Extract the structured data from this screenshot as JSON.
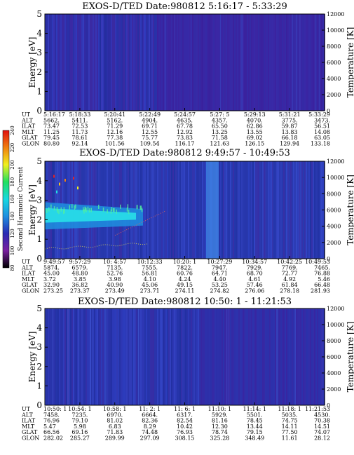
{
  "chart_data": [
    {
      "type": "heatmap",
      "title": "EXOS-D/TED   Date:980812  5:16:17 - 5:33:29",
      "ylabel": "Energy [eV]",
      "y2label": "Temperature [K]",
      "ylim": [
        0,
        5
      ],
      "y2lim": [
        0,
        12000
      ],
      "yticks": [
        "0",
        "1",
        "2",
        "3",
        "4",
        "5"
      ],
      "y2ticks": [
        "0",
        "2000",
        "4000",
        "6000",
        "8000",
        "10000",
        "12000"
      ],
      "background_color": "#3a2aa8",
      "ephemeris": {
        "labels": [
          "UT",
          "ALT",
          "ILAT",
          "MLT",
          "GLAT",
          "GLON"
        ],
        "columns": [
          [
            "5:16:17",
            "5662.",
            "73.47",
            "11.25",
            "79.45",
            "80.80"
          ],
          [
            "5:18:33",
            "5411.",
            "72.53",
            "11.73",
            "78.61",
            "92.14"
          ],
          [
            "5:20:41",
            "5162.",
            "71.29",
            "12.16",
            "77.38",
            "101.56"
          ],
          [
            "5:22:49",
            "4904.",
            "69.71",
            "12.55",
            "75.77",
            "109.54"
          ],
          [
            "5:24:57",
            "4635.",
            "67.78",
            "12.92",
            "73.83",
            "116.17"
          ],
          [
            "5:27: 5",
            "4357.",
            "65.50",
            "13.25",
            "71.58",
            "121.63"
          ],
          [
            "5:29:13",
            "4070.",
            "62.86",
            "13.55",
            "69.02",
            "126.15"
          ],
          [
            "5:31:21",
            "3775.",
            "59.87",
            "13.83",
            "66.18",
            "129.94"
          ],
          [
            "5:33:29",
            "3473.",
            "56.51",
            "14.08",
            "63.05",
            "133.18"
          ]
        ]
      }
    },
    {
      "type": "heatmap",
      "title": "EXOS-D/TED   Date:980812  9:49:57 - 10:49:53",
      "ylabel": "Energy [eV]",
      "y2label": "Temperature [K]",
      "ylim": [
        0,
        5
      ],
      "y2lim": [
        0,
        12000
      ],
      "yticks": [
        "0",
        "1",
        "2",
        "3",
        "4",
        "5"
      ],
      "y2ticks": [
        "0",
        "2000",
        "4000",
        "6000",
        "8000",
        "10000",
        "12000"
      ],
      "background_color": "#2e3cb4",
      "ephemeris": {
        "labels": [
          "UT",
          "ALT",
          "ILAT",
          "MLT",
          "GLAT",
          "GLON"
        ],
        "columns": [
          [
            "9:49:57",
            "5874.",
            "45.00",
            "3.72",
            "32.90",
            "273.25"
          ],
          [
            "9:57:29",
            "6579.",
            "48.80",
            "3.85",
            "36.82",
            "273.37"
          ],
          [
            "10: 4:57",
            "7135.",
            "52.76",
            "3.98",
            "40.90",
            "273.49"
          ],
          [
            "10:12:33",
            "7555.",
            "56.81",
            "4.10",
            "45.06",
            "273.71"
          ],
          [
            "10:20: 1",
            "7822.",
            "60.76",
            "4.24",
            "49.15",
            "274.11"
          ],
          [
            "10:27:29",
            "7947.",
            "64.71",
            "4.40",
            "53.25",
            "274.82"
          ],
          [
            "10:34:57",
            "7929.",
            "68.70",
            "4.61",
            "57.46",
            "276.06"
          ],
          [
            "10:42:25",
            "7769.",
            "72.77",
            "4.92",
            "61.84",
            "278.18"
          ],
          [
            "10:49:53",
            "7465.",
            "76.88",
            "5.46",
            "66.48",
            "281.93"
          ]
        ]
      }
    },
    {
      "type": "heatmap",
      "title": "EXOS-D/TED   Date:980812  10:50: 1 - 11:21:53",
      "ylabel": "Energy [eV]",
      "y2label": "Temperature [K]",
      "ylim": [
        0,
        5
      ],
      "y2lim": [
        0,
        12000
      ],
      "yticks": [
        "0",
        "1",
        "2",
        "3",
        "4",
        "5"
      ],
      "y2ticks": [
        "0",
        "2000",
        "4000",
        "6000",
        "8000",
        "10000",
        "12000"
      ],
      "background_color": "#2f34ae",
      "ephemeris": {
        "labels": [
          "UT",
          "ALT",
          "ILAT",
          "MLT",
          "GLAT",
          "GLON"
        ],
        "columns": [
          [
            "10:50: 1",
            "7458.",
            "76.96",
            "5.47",
            "66.56",
            "282.02"
          ],
          [
            "10:54: 1",
            "7235.",
            "79.10",
            "5.98",
            "69.16",
            "285.27"
          ],
          [
            "10:58: 1",
            "6970.",
            "81.02",
            "6.83",
            "71.83",
            "289.99"
          ],
          [
            "11: 2: 1",
            "6664.",
            "82.36",
            "8.29",
            "74.48",
            "297.09"
          ],
          [
            "11: 6: 1",
            "6317.",
            "82.54",
            "10.42",
            "76.93",
            "308.15"
          ],
          [
            "11:10: 1",
            "5929.",
            "81.16",
            "12.30",
            "78.74",
            "325.28"
          ],
          [
            "11:14: 1",
            "5501.",
            "78.45",
            "13.44",
            "79.15",
            "348.49"
          ],
          [
            "11:18: 1",
            "5035.",
            "74.75",
            "14.11",
            "77.50",
            "11.61"
          ],
          [
            "11:21:53",
            "4530.",
            "70.38",
            "14.51",
            "74.07",
            "28.12"
          ]
        ]
      }
    }
  ],
  "colorbar": {
    "label": "Second Harmonic Current",
    "ticks": [
      "80",
      "100",
      "120",
      "140",
      "160",
      "180",
      "200",
      "220",
      "240"
    ],
    "range": [
      80,
      240
    ],
    "colors": [
      "#000000",
      "#7a1fa0",
      "#2a2ab4",
      "#1f8fe0",
      "#18d8e0",
      "#20e060",
      "#f0f020",
      "#f08010",
      "#e01010"
    ]
  }
}
